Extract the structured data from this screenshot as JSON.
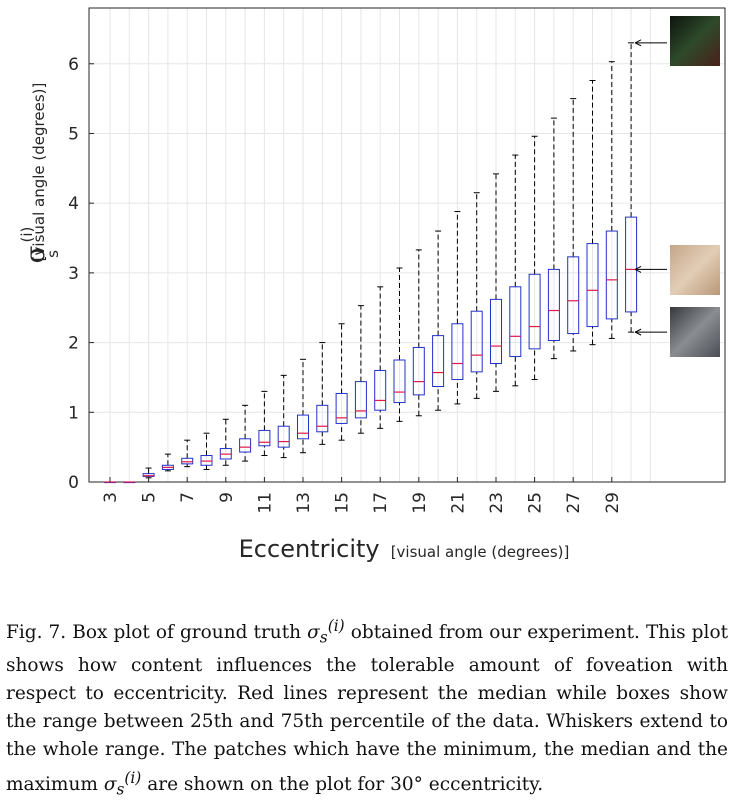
{
  "chart_data": {
    "type": "box",
    "xlabel": "Eccentricity",
    "xlabel_unit": "[visual angle (degrees)]",
    "ylabel": "σ",
    "ylabel_subscript": "s",
    "ylabel_superscript": "(i)",
    "ylabel_unit": "[visual angle (degrees)]",
    "xlim": [
      2,
      32
    ],
    "ylim": [
      0,
      6.8
    ],
    "x_tick_labels": [
      "3",
      "5",
      "7",
      "9",
      "11",
      "13",
      "15",
      "17",
      "19",
      "21",
      "23",
      "25",
      "27",
      "29"
    ],
    "y_tick_labels": [
      "0",
      "1",
      "2",
      "3",
      "4",
      "5",
      "6"
    ],
    "grid": true,
    "median_color": "#e0194d",
    "box_color": "#2233c8",
    "boxes": [
      {
        "x": 3,
        "min": 0,
        "q1": 0,
        "median": 0,
        "q3": 0,
        "max": 0
      },
      {
        "x": 4,
        "min": 0,
        "q1": 0,
        "median": 0,
        "q3": 0,
        "max": 0
      },
      {
        "x": 5,
        "min": 0.06,
        "q1": 0.08,
        "median": 0.09,
        "q3": 0.12,
        "max": 0.2
      },
      {
        "x": 6,
        "min": 0.16,
        "q1": 0.18,
        "median": 0.21,
        "q3": 0.24,
        "max": 0.4
      },
      {
        "x": 7,
        "min": 0.22,
        "q1": 0.26,
        "median": 0.29,
        "q3": 0.34,
        "max": 0.6
      },
      {
        "x": 8,
        "min": 0.18,
        "q1": 0.24,
        "median": 0.3,
        "q3": 0.38,
        "max": 0.7
      },
      {
        "x": 9,
        "min": 0.24,
        "q1": 0.33,
        "median": 0.4,
        "q3": 0.48,
        "max": 0.9
      },
      {
        "x": 10,
        "min": 0.3,
        "q1": 0.43,
        "median": 0.5,
        "q3": 0.62,
        "max": 1.1
      },
      {
        "x": 11,
        "min": 0.38,
        "q1": 0.52,
        "median": 0.57,
        "q3": 0.74,
        "max": 1.3
      },
      {
        "x": 12,
        "min": 0.35,
        "q1": 0.5,
        "median": 0.58,
        "q3": 0.8,
        "max": 1.53
      },
      {
        "x": 13,
        "min": 0.42,
        "q1": 0.62,
        "median": 0.7,
        "q3": 0.96,
        "max": 1.76
      },
      {
        "x": 14,
        "min": 0.54,
        "q1": 0.72,
        "median": 0.8,
        "q3": 1.1,
        "max": 2.0
      },
      {
        "x": 15,
        "min": 0.6,
        "q1": 0.84,
        "median": 0.92,
        "q3": 1.27,
        "max": 2.27
      },
      {
        "x": 16,
        "min": 0.7,
        "q1": 0.92,
        "median": 1.02,
        "q3": 1.44,
        "max": 2.53
      },
      {
        "x": 17,
        "min": 0.77,
        "q1": 1.03,
        "median": 1.17,
        "q3": 1.6,
        "max": 2.8
      },
      {
        "x": 18,
        "min": 0.87,
        "q1": 1.14,
        "median": 1.29,
        "q3": 1.75,
        "max": 3.07
      },
      {
        "x": 19,
        "min": 0.95,
        "q1": 1.25,
        "median": 1.44,
        "q3": 1.93,
        "max": 3.33
      },
      {
        "x": 20,
        "min": 1.03,
        "q1": 1.37,
        "median": 1.57,
        "q3": 2.1,
        "max": 3.6
      },
      {
        "x": 21,
        "min": 1.12,
        "q1": 1.47,
        "median": 1.7,
        "q3": 2.27,
        "max": 3.88
      },
      {
        "x": 22,
        "min": 1.2,
        "q1": 1.58,
        "median": 1.82,
        "q3": 2.45,
        "max": 4.15
      },
      {
        "x": 23,
        "min": 1.3,
        "q1": 1.7,
        "median": 1.95,
        "q3": 2.62,
        "max": 4.42
      },
      {
        "x": 24,
        "min": 1.38,
        "q1": 1.8,
        "median": 2.09,
        "q3": 2.8,
        "max": 4.69
      },
      {
        "x": 25,
        "min": 1.47,
        "q1": 1.91,
        "median": 2.23,
        "q3": 2.98,
        "max": 4.96
      },
      {
        "x": 26,
        "min": 1.77,
        "q1": 2.03,
        "median": 2.46,
        "q3": 3.05,
        "max": 5.22
      },
      {
        "x": 27,
        "min": 1.88,
        "q1": 2.13,
        "median": 2.6,
        "q3": 3.23,
        "max": 5.5
      },
      {
        "x": 28,
        "min": 1.97,
        "q1": 2.23,
        "median": 2.75,
        "q3": 3.42,
        "max": 5.76
      },
      {
        "x": 29,
        "min": 2.06,
        "q1": 2.34,
        "median": 2.9,
        "q3": 3.6,
        "max": 6.03
      },
      {
        "x": 30,
        "min": 2.15,
        "q1": 2.44,
        "median": 3.05,
        "q3": 3.8,
        "max": 6.3
      }
    ],
    "patch_images": [
      {
        "label": "maximum patch",
        "points_to": 6.3,
        "tone": "dark-green-red"
      },
      {
        "label": "median patch",
        "points_to": 3.05,
        "tone": "tan-texture"
      },
      {
        "label": "minimum patch",
        "points_to": 2.15,
        "tone": "gray-rope"
      }
    ]
  },
  "caption": {
    "fig_label": "Fig. 7.",
    "text_before_symbol": "Box plot of ground truth",
    "symbol": "σ",
    "symbol_sub": "s",
    "symbol_sup": "(i)",
    "text_middle": "obtained from our experiment. This plot shows how content influences the tolerable amount of foveation with respect to eccentricity. Red lines represent the median while boxes show the range between 25th and 75th percentile of the data. Whiskers extend to the whole range. The patches which have the minimum, the median and the maximum",
    "text_after_symbol": "are shown on the plot for 30° eccentricity."
  }
}
